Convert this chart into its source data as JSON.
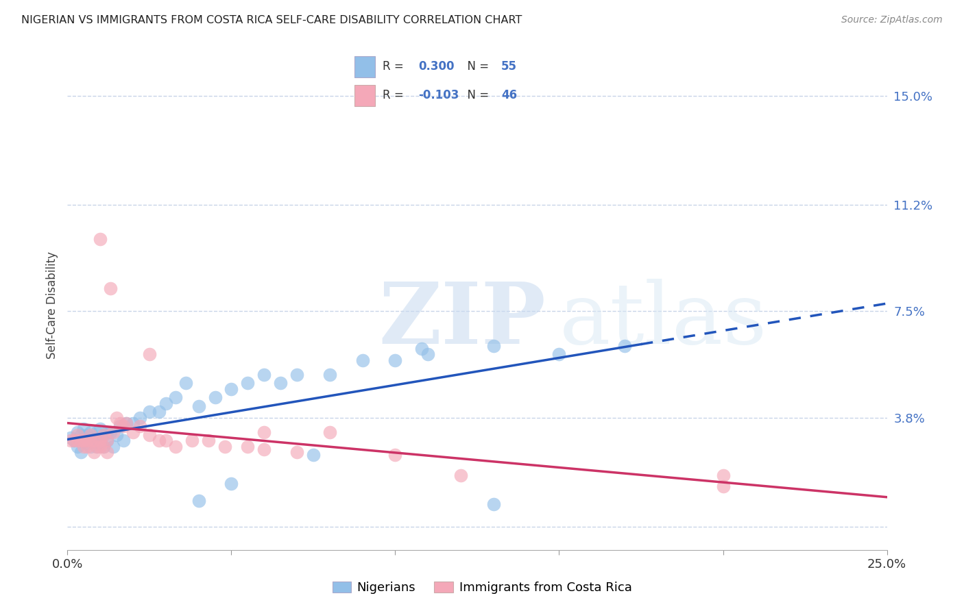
{
  "title": "NIGERIAN VS IMMIGRANTS FROM COSTA RICA SELF-CARE DISABILITY CORRELATION CHART",
  "source": "Source: ZipAtlas.com",
  "xlabel_nigerians": "Nigerians",
  "xlabel_immigrants": "Immigrants from Costa Rica",
  "ylabel": "Self-Care Disability",
  "xlim": [
    0.0,
    0.25
  ],
  "ylim": [
    -0.008,
    0.162
  ],
  "ytick_positions": [
    0.0,
    0.038,
    0.075,
    0.112,
    0.15
  ],
  "ytick_labels": [
    "",
    "3.8%",
    "7.5%",
    "11.2%",
    "15.0%"
  ],
  "r_nigerian": 0.3,
  "n_nigerian": 55,
  "r_immigrant": -0.103,
  "n_immigrant": 46,
  "nigerian_color": "#92bfe8",
  "immigrant_color": "#f4a8b8",
  "line_nigerian_color": "#2255bb",
  "line_immigrant_color": "#cc3366",
  "nigerian_x": [
    0.001,
    0.002,
    0.003,
    0.003,
    0.004,
    0.004,
    0.005,
    0.005,
    0.006,
    0.006,
    0.007,
    0.007,
    0.008,
    0.008,
    0.009,
    0.009,
    0.01,
    0.01,
    0.01,
    0.011,
    0.011,
    0.012,
    0.012,
    0.013,
    0.014,
    0.015,
    0.016,
    0.017,
    0.018,
    0.02,
    0.022,
    0.025,
    0.028,
    0.03,
    0.033,
    0.036,
    0.04,
    0.045,
    0.05,
    0.055,
    0.06,
    0.065,
    0.07,
    0.08,
    0.09,
    0.1,
    0.11,
    0.13,
    0.15,
    0.17,
    0.05,
    0.04,
    0.075,
    0.13,
    0.108
  ],
  "nigerian_y": [
    0.031,
    0.03,
    0.033,
    0.028,
    0.032,
    0.026,
    0.03,
    0.034,
    0.029,
    0.032,
    0.028,
    0.033,
    0.031,
    0.03,
    0.033,
    0.028,
    0.03,
    0.034,
    0.029,
    0.032,
    0.028,
    0.033,
    0.03,
    0.033,
    0.028,
    0.032,
    0.035,
    0.03,
    0.036,
    0.036,
    0.038,
    0.04,
    0.04,
    0.043,
    0.045,
    0.05,
    0.042,
    0.045,
    0.048,
    0.05,
    0.053,
    0.05,
    0.053,
    0.053,
    0.058,
    0.058,
    0.06,
    0.063,
    0.06,
    0.063,
    0.015,
    0.009,
    0.025,
    0.008,
    0.062
  ],
  "immigrant_x": [
    0.001,
    0.002,
    0.003,
    0.003,
    0.004,
    0.005,
    0.005,
    0.006,
    0.006,
    0.007,
    0.007,
    0.008,
    0.008,
    0.009,
    0.01,
    0.01,
    0.011,
    0.011,
    0.012,
    0.012,
    0.013,
    0.014,
    0.015,
    0.016,
    0.017,
    0.018,
    0.02,
    0.022,
    0.025,
    0.028,
    0.03,
    0.033,
    0.038,
    0.043,
    0.048,
    0.055,
    0.06,
    0.07,
    0.08,
    0.1,
    0.12,
    0.2,
    0.01,
    0.025,
    0.06,
    0.2
  ],
  "immigrant_y": [
    0.03,
    0.03,
    0.032,
    0.03,
    0.03,
    0.028,
    0.03,
    0.03,
    0.028,
    0.032,
    0.03,
    0.03,
    0.026,
    0.028,
    0.03,
    0.028,
    0.028,
    0.032,
    0.03,
    0.026,
    0.083,
    0.033,
    0.038,
    0.036,
    0.035,
    0.036,
    0.033,
    0.035,
    0.032,
    0.03,
    0.03,
    0.028,
    0.03,
    0.03,
    0.028,
    0.028,
    0.027,
    0.026,
    0.033,
    0.025,
    0.018,
    0.014,
    0.1,
    0.06,
    0.033,
    0.018
  ],
  "watermark_zip": "ZIP",
  "watermark_atlas": "atlas",
  "background_color": "#ffffff",
  "grid_color": "#c8d4e8",
  "legend_border_color": "#b8c8dc"
}
